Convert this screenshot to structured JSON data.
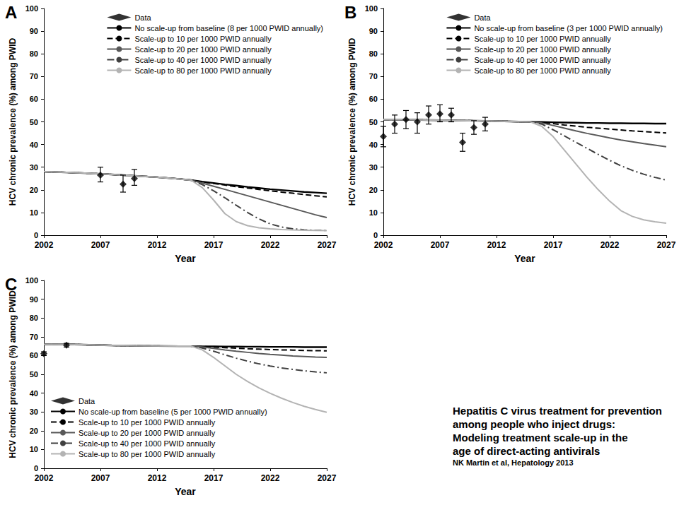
{
  "chart_data": [
    {
      "type": "line",
      "title": "A",
      "xlabel": "Year",
      "ylabel": "HCV chronic prevalence (%) among PWID",
      "xlim": [
        2002,
        2027
      ],
      "xticks": [
        2002,
        2007,
        2012,
        2017,
        2022,
        2027
      ],
      "ylim": [
        0,
        100
      ],
      "yticks": [
        0,
        10,
        20,
        30,
        40,
        50,
        60,
        70,
        80,
        90,
        100
      ],
      "grid": false,
      "legend": "upper right",
      "series": [
        {
          "name": "Data",
          "type": "scatter",
          "marker": "diamond",
          "color": "#000000",
          "x": [
            2007,
            2009,
            2010
          ],
          "values": [
            26.5,
            22.5,
            25
          ],
          "error_low": [
            23.5,
            19,
            22
          ],
          "error_high": [
            30,
            26.5,
            29
          ]
        },
        {
          "name": "No scale-up from baseline (8 per 1000 PWID annually)",
          "type": "line",
          "color": "#000000",
          "line_style": "solid",
          "x": [
            2002,
            2004,
            2006,
            2008,
            2010,
            2012,
            2014,
            2015,
            2016,
            2017,
            2018,
            2019,
            2020,
            2021,
            2022,
            2023,
            2024,
            2025,
            2026,
            2027
          ],
          "values": [
            28,
            27.7,
            27.3,
            26.8,
            26.2,
            25.6,
            24.8,
            24.3,
            23.6,
            23,
            22.4,
            21.9,
            21.3,
            20.8,
            20.3,
            19.9,
            19.5,
            19.1,
            18.8,
            18.5
          ]
        },
        {
          "name": "Scale-up to 10 per 1000 PWID annually",
          "type": "line",
          "color": "#000000",
          "line_style": "dashed",
          "x": [
            2002,
            2004,
            2006,
            2008,
            2010,
            2012,
            2014,
            2015,
            2016,
            2017,
            2018,
            2019,
            2020,
            2021,
            2022,
            2023,
            2024,
            2025,
            2026,
            2027
          ],
          "values": [
            28,
            27.7,
            27.3,
            26.8,
            26.2,
            25.6,
            24.8,
            24.3,
            23.5,
            22.8,
            22.1,
            21.4,
            20.8,
            20.2,
            19.6,
            19,
            18.5,
            17.9,
            17.4,
            16.9
          ]
        },
        {
          "name": "Scale-up to 20 per 1000 PWID annually",
          "type": "line",
          "color": "#595959",
          "line_style": "solid",
          "x": [
            2002,
            2004,
            2006,
            2008,
            2010,
            2012,
            2014,
            2015,
            2016,
            2017,
            2018,
            2019,
            2020,
            2021,
            2022,
            2023,
            2024,
            2025,
            2026,
            2027
          ],
          "values": [
            28,
            27.7,
            27.3,
            26.8,
            26.2,
            25.6,
            24.8,
            24.3,
            23,
            21.6,
            20.2,
            18.8,
            17.4,
            16,
            14.6,
            13.2,
            11.8,
            10.4,
            9,
            7.8
          ]
        },
        {
          "name": "Scale-up to 40 per 1000 PWID annually",
          "type": "line",
          "color": "#404040",
          "line_style": "dashdot",
          "x": [
            2002,
            2004,
            2006,
            2008,
            2010,
            2012,
            2014,
            2015,
            2016,
            2017,
            2018,
            2019,
            2020,
            2021,
            2022,
            2023,
            2024,
            2025,
            2026,
            2027
          ],
          "values": [
            28,
            27.7,
            27.3,
            26.8,
            26.2,
            25.6,
            24.8,
            24.3,
            22.3,
            19.6,
            16.5,
            13.2,
            10,
            7.2,
            5,
            3.6,
            2.8,
            2.4,
            2.2,
            2.1
          ]
        },
        {
          "name": "Scale-up to 80 per 1000 PWID annually",
          "type": "line",
          "color": "#b3b3b3",
          "line_style": "solid",
          "x": [
            2002,
            2004,
            2006,
            2008,
            2010,
            2012,
            2014,
            2015,
            2016,
            2017,
            2018,
            2019,
            2020,
            2021,
            2022,
            2023,
            2024,
            2025,
            2026,
            2027
          ],
          "values": [
            28,
            27.7,
            27.3,
            26.8,
            26.2,
            25.6,
            24.8,
            24.3,
            21,
            15.5,
            9.5,
            6,
            4.2,
            3.3,
            2.8,
            2.5,
            2.3,
            2.2,
            2.1,
            2
          ]
        }
      ]
    },
    {
      "type": "line",
      "title": "B",
      "xlabel": "Year",
      "ylabel": "HCV chronic prevalence (%) among PWID",
      "xlim": [
        2002,
        2027
      ],
      "xticks": [
        2002,
        2007,
        2012,
        2017,
        2022,
        2027
      ],
      "ylim": [
        0,
        100
      ],
      "yticks": [
        0,
        10,
        20,
        30,
        40,
        50,
        60,
        70,
        80,
        90,
        100
      ],
      "grid": false,
      "legend": "upper right",
      "series": [
        {
          "name": "Data",
          "type": "scatter",
          "marker": "diamond",
          "color": "#000000",
          "x": [
            2002,
            2003,
            2004,
            2005,
            2006,
            2007,
            2008,
            2009,
            2010,
            2011
          ],
          "values": [
            43.5,
            49,
            51,
            50,
            53,
            53.5,
            53,
            41,
            47.5,
            49
          ],
          "error_low": [
            39,
            45,
            47,
            45,
            49,
            50,
            50,
            37,
            44.5,
            46
          ],
          "error_high": [
            48,
            53,
            55,
            54,
            57,
            57.5,
            56,
            45,
            50.5,
            52
          ]
        },
        {
          "name": "No scale-up from baseline (3 per 1000 PWID annually)",
          "type": "line",
          "color": "#000000",
          "line_style": "solid",
          "x": [
            2002,
            2004,
            2006,
            2008,
            2010,
            2012,
            2014,
            2015,
            2016,
            2017,
            2018,
            2019,
            2020,
            2021,
            2022,
            2023,
            2024,
            2025,
            2026,
            2027
          ],
          "values": [
            51,
            51,
            50.8,
            50.6,
            50.5,
            50.3,
            50.1,
            50,
            49.9,
            49.8,
            49.7,
            49.6,
            49.5,
            49.5,
            49.4,
            49.4,
            49.3,
            49.3,
            49.2,
            49.2
          ]
        },
        {
          "name": "Scale-up to 10 per 1000 PWID annually",
          "type": "line",
          "color": "#000000",
          "line_style": "dashed",
          "x": [
            2002,
            2004,
            2006,
            2008,
            2010,
            2012,
            2014,
            2015,
            2016,
            2017,
            2018,
            2019,
            2020,
            2021,
            2022,
            2023,
            2024,
            2025,
            2026,
            2027
          ],
          "values": [
            51,
            51,
            50.8,
            50.6,
            50.5,
            50.3,
            50.1,
            50,
            49.7,
            49.2,
            48.6,
            48.1,
            47.6,
            47.2,
            46.8,
            46.4,
            46,
            45.7,
            45.4,
            45.1
          ]
        },
        {
          "name": "Scale-up to 20 per 1000 PWID annually",
          "type": "line",
          "color": "#595959",
          "line_style": "solid",
          "x": [
            2002,
            2004,
            2006,
            2008,
            2010,
            2012,
            2014,
            2015,
            2016,
            2017,
            2018,
            2019,
            2020,
            2021,
            2022,
            2023,
            2024,
            2025,
            2026,
            2027
          ],
          "values": [
            51,
            51,
            50.8,
            50.6,
            50.5,
            50.3,
            50.1,
            50,
            49.5,
            48.4,
            47.2,
            46,
            44.9,
            43.9,
            42.9,
            42,
            41.2,
            40.4,
            39.7,
            39
          ]
        },
        {
          "name": "Scale-up to 40 per 1000 PWID annually",
          "type": "line",
          "color": "#404040",
          "line_style": "dashdot",
          "x": [
            2002,
            2004,
            2006,
            2008,
            2010,
            2012,
            2014,
            2015,
            2016,
            2017,
            2018,
            2019,
            2020,
            2021,
            2022,
            2023,
            2024,
            2025,
            2026,
            2027
          ],
          "values": [
            51,
            51,
            50.8,
            50.6,
            50.5,
            50.3,
            50.1,
            50,
            49,
            46.5,
            43.8,
            41,
            38.3,
            35.6,
            33,
            30.6,
            28.6,
            26.9,
            25.5,
            24.3
          ]
        },
        {
          "name": "Scale-up to 80 per 1000 PWID annually",
          "type": "line",
          "color": "#b3b3b3",
          "line_style": "solid",
          "x": [
            2002,
            2004,
            2006,
            2008,
            2010,
            2012,
            2014,
            2015,
            2016,
            2017,
            2018,
            2019,
            2020,
            2021,
            2022,
            2023,
            2024,
            2025,
            2026,
            2027
          ],
          "values": [
            51,
            51,
            50.8,
            50.6,
            50.5,
            50.3,
            50.1,
            50,
            48,
            43.5,
            37.5,
            31.5,
            25.5,
            20,
            15,
            10.8,
            8.3,
            6.8,
            5.9,
            5.3
          ]
        }
      ]
    },
    {
      "type": "line",
      "title": "C",
      "xlabel": "Year",
      "ylabel": "HCV chronic prevalence (%) among PWID",
      "xlim": [
        2002,
        2027
      ],
      "xticks": [
        2002,
        2007,
        2012,
        2017,
        2022,
        2027
      ],
      "ylim": [
        0,
        100
      ],
      "yticks": [
        0,
        10,
        20,
        30,
        40,
        50,
        60,
        70,
        80,
        90,
        100
      ],
      "grid": false,
      "legend": "lower left",
      "series": [
        {
          "name": "Data",
          "type": "scatter",
          "marker": "diamond",
          "color": "#000000",
          "x": [
            2002,
            2004
          ],
          "values": [
            61,
            65.5
          ],
          "error_low": [
            60,
            64.5
          ],
          "error_high": [
            62,
            66.5
          ]
        },
        {
          "name": "No scale-up from baseline (5 per 1000 PWID annually)",
          "type": "line",
          "color": "#000000",
          "line_style": "solid",
          "x": [
            2002,
            2004,
            2006,
            2008,
            2010,
            2012,
            2014,
            2015,
            2016,
            2017,
            2018,
            2019,
            2020,
            2021,
            2022,
            2023,
            2024,
            2025,
            2026,
            2027
          ],
          "values": [
            66,
            66,
            65.7,
            65.4,
            65.2,
            65.1,
            65,
            65,
            64.9,
            64.9,
            64.8,
            64.8,
            64.7,
            64.7,
            64.6,
            64.6,
            64.6,
            64.5,
            64.5,
            64.5
          ]
        },
        {
          "name": "Scale-up to 10 per 1000 PWID annually",
          "type": "line",
          "color": "#000000",
          "line_style": "dashed",
          "x": [
            2002,
            2004,
            2006,
            2008,
            2010,
            2012,
            2014,
            2015,
            2016,
            2017,
            2018,
            2019,
            2020,
            2021,
            2022,
            2023,
            2024,
            2025,
            2026,
            2027
          ],
          "values": [
            66,
            66,
            65.7,
            65.4,
            65.2,
            65.1,
            65,
            65,
            64.8,
            64.5,
            64.2,
            63.9,
            63.6,
            63.4,
            63.2,
            63,
            62.9,
            62.7,
            62.6,
            62.5
          ]
        },
        {
          "name": "Scale-up to 20 per 1000 PWID annually",
          "type": "line",
          "color": "#595959",
          "line_style": "solid",
          "x": [
            2002,
            2004,
            2006,
            2008,
            2010,
            2012,
            2014,
            2015,
            2016,
            2017,
            2018,
            2019,
            2020,
            2021,
            2022,
            2023,
            2024,
            2025,
            2026,
            2027
          ],
          "values": [
            66,
            66,
            65.7,
            65.4,
            65.2,
            65.1,
            65,
            65,
            64.6,
            63.8,
            63,
            62.3,
            61.7,
            61.1,
            60.6,
            60.2,
            59.8,
            59.5,
            59.2,
            59
          ]
        },
        {
          "name": "Scale-up to 40 per 1000 PWID annually",
          "type": "line",
          "color": "#404040",
          "line_style": "dashdot",
          "x": [
            2002,
            2004,
            2006,
            2008,
            2010,
            2012,
            2014,
            2015,
            2016,
            2017,
            2018,
            2019,
            2020,
            2021,
            2022,
            2023,
            2024,
            2025,
            2026,
            2027
          ],
          "values": [
            66,
            66,
            65.7,
            65.4,
            65.2,
            65.1,
            65,
            65,
            64,
            62.3,
            60.4,
            58.6,
            57,
            55.6,
            54.4,
            53.4,
            52.6,
            51.9,
            51.3,
            50.8
          ]
        },
        {
          "name": "Scale-up to 80 per 1000 PWID annually",
          "type": "line",
          "color": "#b3b3b3",
          "line_style": "solid",
          "x": [
            2002,
            2004,
            2006,
            2008,
            2010,
            2012,
            2014,
            2015,
            2016,
            2017,
            2018,
            2019,
            2020,
            2021,
            2022,
            2023,
            2024,
            2025,
            2026,
            2027
          ],
          "values": [
            66,
            66,
            65.7,
            65.4,
            65.2,
            65.1,
            65,
            65,
            63,
            59,
            54.5,
            50,
            46.2,
            42.8,
            39.9,
            37.3,
            35,
            33,
            31.3,
            29.8
          ]
        }
      ]
    }
  ],
  "caption": {
    "title_lines": [
      "Hepatitis C virus treatment for prevention",
      "among people who inject drugs:",
      "Modeling treatment scale-up in the",
      "age of direct-acting antivirals"
    ],
    "citation": "NK Martin et al, Hepatology 2013"
  }
}
